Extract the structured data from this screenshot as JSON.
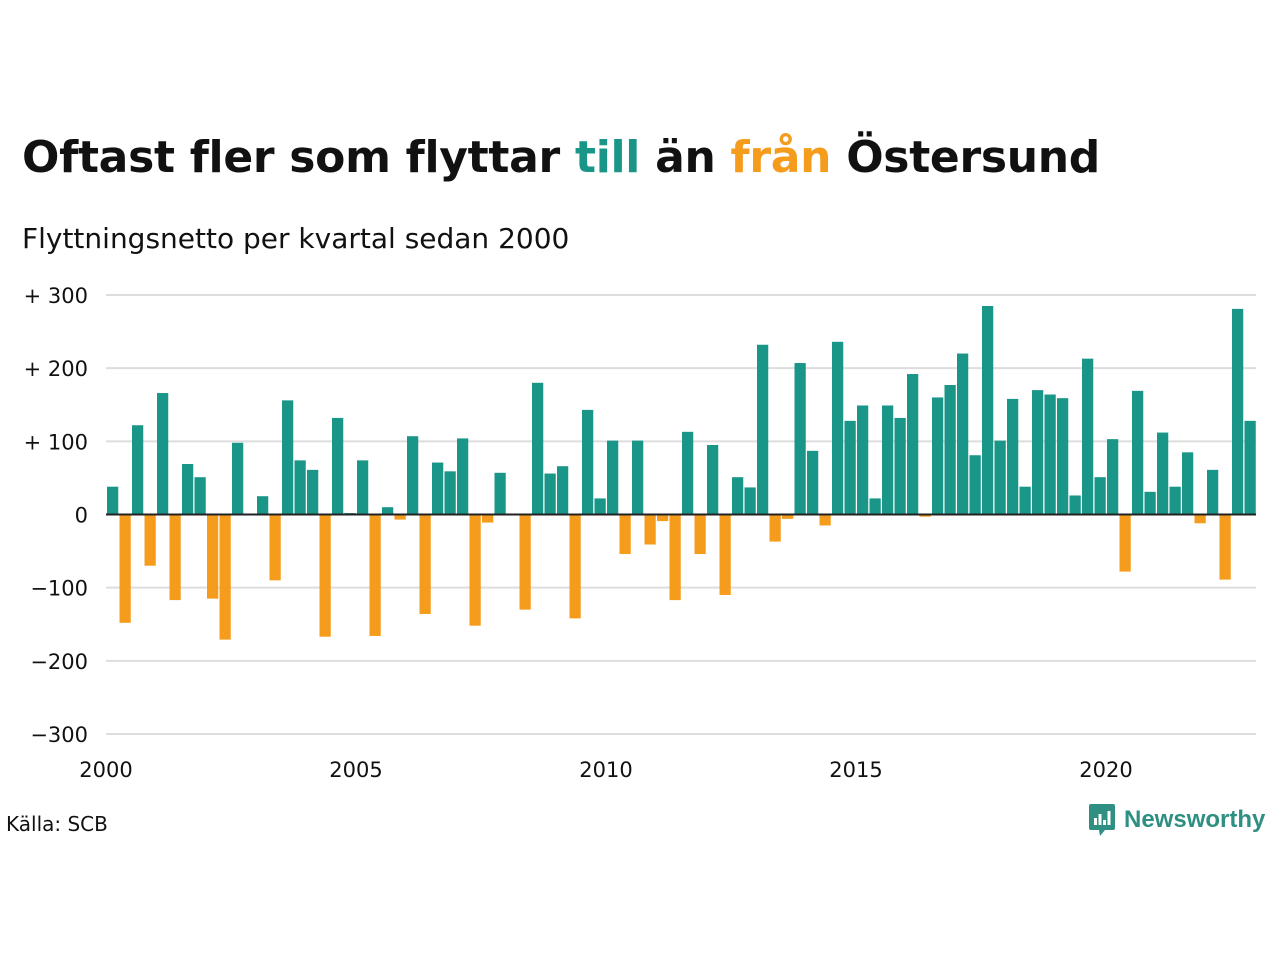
{
  "title": {
    "part1": "Oftast fler som flyttar ",
    "part2": "till",
    "part3": " än ",
    "part4": "från",
    "part5": " Östersund"
  },
  "subtitle": "Flyttningsnetto per kvartal sedan 2000",
  "source": "Källa: SCB",
  "brand": {
    "name": "Newsworthy",
    "icon": "newsworthy-logo-icon"
  },
  "colors": {
    "positive": "#1a9688",
    "negative": "#f59c1d",
    "grid": "#dddddd",
    "baseline": "#222222"
  },
  "chart_data": {
    "type": "bar",
    "title": "Oftast fler som flyttar till än från Östersund",
    "subtitle": "Flyttningsnetto per kvartal sedan 2000",
    "xlabel": "",
    "ylabel": "",
    "ylim": [
      -300,
      300
    ],
    "xlim": [
      2000,
      2023
    ],
    "grid": true,
    "y_ticks": [
      {
        "value": 300,
        "label": "+ 300"
      },
      {
        "value": 200,
        "label": "+ 200"
      },
      {
        "value": 100,
        "label": "+ 100"
      },
      {
        "value": 0,
        "label": "0"
      },
      {
        "value": -100,
        "label": "−100"
      },
      {
        "value": -200,
        "label": "−200"
      },
      {
        "value": -300,
        "label": "−300"
      }
    ],
    "x_ticks": [
      {
        "value": 2000,
        "label": "2000"
      },
      {
        "value": 2005,
        "label": "2005"
      },
      {
        "value": 2010,
        "label": "2010"
      },
      {
        "value": 2015,
        "label": "2015"
      },
      {
        "value": 2020,
        "label": "2020"
      }
    ],
    "categories": [
      "2000 Q1",
      "2000 Q2",
      "2000 Q3",
      "2000 Q4",
      "2001 Q1",
      "2001 Q2",
      "2001 Q3",
      "2001 Q4",
      "2002 Q1",
      "2002 Q2",
      "2002 Q3",
      "2002 Q4",
      "2003 Q1",
      "2003 Q2",
      "2003 Q3",
      "2003 Q4",
      "2004 Q1",
      "2004 Q2",
      "2004 Q3",
      "2004 Q4",
      "2005 Q1",
      "2005 Q2",
      "2005 Q3",
      "2005 Q4",
      "2006 Q1",
      "2006 Q2",
      "2006 Q3",
      "2006 Q4",
      "2007 Q1",
      "2007 Q2",
      "2007 Q3",
      "2007 Q4",
      "2008 Q1",
      "2008 Q2",
      "2008 Q3",
      "2008 Q4",
      "2009 Q1",
      "2009 Q2",
      "2009 Q3",
      "2009 Q4",
      "2010 Q1",
      "2010 Q2",
      "2010 Q3",
      "2010 Q4",
      "2011 Q1",
      "2011 Q2",
      "2011 Q3",
      "2011 Q4",
      "2012 Q1",
      "2012 Q2",
      "2012 Q3",
      "2012 Q4",
      "2013 Q1",
      "2013 Q2",
      "2013 Q3",
      "2013 Q4",
      "2014 Q1",
      "2014 Q2",
      "2014 Q3",
      "2014 Q4",
      "2015 Q1",
      "2015 Q2",
      "2015 Q3",
      "2015 Q4",
      "2016 Q1",
      "2016 Q2",
      "2016 Q3",
      "2016 Q4",
      "2017 Q1",
      "2017 Q2",
      "2017 Q3",
      "2017 Q4",
      "2018 Q1",
      "2018 Q2",
      "2018 Q3",
      "2018 Q4",
      "2019 Q1",
      "2019 Q2",
      "2019 Q3",
      "2019 Q4",
      "2020 Q1",
      "2020 Q2",
      "2020 Q3",
      "2020 Q4",
      "2021 Q1",
      "2021 Q2",
      "2021 Q3",
      "2021 Q4",
      "2022 Q1",
      "2022 Q2",
      "2022 Q3",
      "2022 Q4"
    ],
    "values": [
      38,
      -148,
      122,
      -70,
      166,
      -117,
      69,
      51,
      -115,
      -171,
      98,
      0,
      25,
      -90,
      156,
      74,
      61,
      -167,
      132,
      2,
      74,
      -166,
      10,
      -7,
      107,
      -136,
      71,
      59,
      104,
      -152,
      -11,
      57,
      -1,
      -130,
      180,
      56,
      66,
      -142,
      143,
      22,
      101,
      -54,
      101,
      -41,
      -9,
      -117,
      113,
      -54,
      95,
      -110,
      51,
      37,
      232,
      -37,
      -6,
      207,
      87,
      -15,
      236,
      128,
      149,
      22,
      149,
      132,
      192,
      -3,
      160,
      177,
      220,
      81,
      285,
      101,
      158,
      38,
      170,
      164,
      159,
      26,
      213,
      51,
      103,
      -78,
      169,
      31,
      112,
      38,
      85,
      -12,
      61,
      -89,
      281,
      128
    ]
  }
}
